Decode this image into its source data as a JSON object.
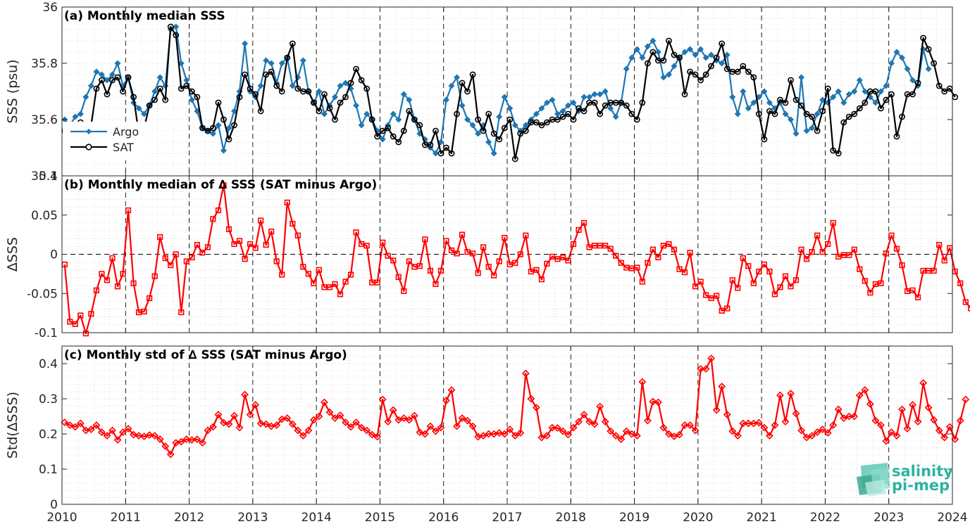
{
  "chart_data": [
    {
      "type": "line",
      "panel": "a",
      "title": "(a) Monthly median SSS",
      "ylabel": "SSS (psu)",
      "ylim": [
        35.4,
        36.0
      ],
      "yticks": [
        35.4,
        35.6,
        35.8,
        36
      ],
      "ytick_labels": [
        "35.4",
        "35.6",
        "35.8",
        "36"
      ],
      "x_start": "2010-01",
      "x_step": "1 month",
      "legend_placement": "bottom-left",
      "series": [
        {
          "name": "Argo",
          "color": "#1f77b4",
          "marker": "diamond-filled",
          "values": [
            35.6,
            35.58,
            35.61,
            35.62,
            35.68,
            35.72,
            35.77,
            35.76,
            35.74,
            35.76,
            35.8,
            35.72,
            35.75,
            35.66,
            35.64,
            35.62,
            35.65,
            35.7,
            35.75,
            35.72,
            35.92,
            35.93,
            35.8,
            35.74,
            35.67,
            35.63,
            35.57,
            35.56,
            35.55,
            35.58,
            35.49,
            35.57,
            35.63,
            35.7,
            35.87,
            35.7,
            35.68,
            35.72,
            35.81,
            35.8,
            35.73,
            35.8,
            35.82,
            35.72,
            35.75,
            35.81,
            35.7,
            35.66,
            35.7,
            35.62,
            35.65,
            35.68,
            35.72,
            35.73,
            35.71,
            35.65,
            35.58,
            35.62,
            35.6,
            35.56,
            35.53,
            35.58,
            35.62,
            35.6,
            35.69,
            35.67,
            35.6,
            35.55,
            35.53,
            35.5,
            35.48,
            35.52,
            35.67,
            35.72,
            35.75,
            35.65,
            35.6,
            35.58,
            35.55,
            35.58,
            35.52,
            35.48,
            35.61,
            35.68,
            35.64,
            35.58,
            35.56,
            35.58,
            35.6,
            35.62,
            35.64,
            35.66,
            35.67,
            35.62,
            35.63,
            35.65,
            35.66,
            35.63,
            35.68,
            35.68,
            35.69,
            35.69,
            35.7,
            35.64,
            35.61,
            35.66,
            35.78,
            35.82,
            35.85,
            35.82,
            35.86,
            35.88,
            35.84,
            35.75,
            35.76,
            35.79,
            35.82,
            35.84,
            35.85,
            35.83,
            35.85,
            35.82,
            35.83,
            35.81,
            35.8,
            35.83,
            35.68,
            35.62,
            35.7,
            35.64,
            35.66,
            35.68,
            35.7,
            35.66,
            35.64,
            35.66,
            35.62,
            35.6,
            35.55,
            35.75,
            35.56,
            35.57,
            35.62,
            35.67,
            35.66,
            35.68,
            35.7,
            35.66,
            35.69,
            35.7,
            35.74,
            35.7,
            35.68,
            35.66,
            35.7,
            35.72,
            35.8,
            35.84,
            35.82,
            35.78,
            35.74,
            35.72,
            35.85,
            35.78
          ]
        },
        {
          "name": "SAT",
          "color": "#000000",
          "marker": "circle-open",
          "values": [
            35.56,
            35.55,
            35.5,
            35.59,
            35.58,
            35.58,
            35.71,
            35.74,
            35.69,
            35.74,
            35.75,
            35.7,
            35.75,
            35.68,
            35.55,
            35.57,
            35.65,
            35.67,
            35.71,
            35.67,
            35.93,
            35.9,
            35.71,
            35.72,
            35.7,
            35.68,
            35.57,
            35.56,
            35.57,
            35.66,
            35.6,
            35.53,
            35.58,
            35.68,
            35.76,
            35.71,
            35.69,
            35.63,
            35.76,
            35.77,
            35.72,
            35.7,
            35.82,
            35.87,
            35.71,
            35.7,
            35.7,
            35.66,
            35.63,
            35.69,
            35.64,
            35.6,
            35.66,
            35.68,
            35.73,
            35.78,
            35.74,
            35.71,
            35.6,
            35.54,
            35.56,
            35.57,
            35.54,
            35.52,
            35.56,
            35.63,
            35.6,
            35.58,
            35.51,
            35.51,
            35.56,
            35.48,
            35.5,
            35.48,
            35.62,
            35.73,
            35.7,
            35.76,
            35.6,
            35.56,
            35.62,
            35.55,
            35.53,
            35.57,
            35.6,
            35.46,
            35.55,
            35.56,
            35.59,
            35.59,
            35.58,
            35.59,
            35.6,
            35.6,
            35.61,
            35.62,
            35.6,
            35.64,
            35.63,
            35.66,
            35.66,
            35.62,
            35.65,
            35.66,
            35.66,
            35.66,
            35.65,
            35.62,
            35.6,
            35.66,
            35.8,
            35.84,
            35.81,
            35.81,
            35.88,
            35.83,
            35.82,
            35.69,
            35.77,
            35.76,
            35.74,
            35.76,
            35.79,
            35.82,
            35.87,
            35.78,
            35.77,
            35.77,
            35.79,
            35.77,
            35.75,
            35.62,
            35.53,
            35.63,
            35.62,
            35.67,
            35.66,
            35.74,
            35.67,
            35.65,
            35.62,
            35.61,
            35.56,
            35.63,
            35.71,
            35.49,
            35.48,
            35.59,
            35.61,
            35.62,
            35.64,
            35.66,
            35.7,
            35.7,
            35.64,
            35.67,
            35.69,
            35.54,
            35.61,
            35.69,
            35.69,
            35.73,
            35.89,
            35.85,
            35.8,
            35.72,
            35.7,
            35.71,
            35.68
          ]
        }
      ]
    },
    {
      "type": "line",
      "panel": "b",
      "title": "(b) Monthly median of ∆ SSS (SAT minus Argo)",
      "ylabel": "∆SSS",
      "ylim": [
        -0.1,
        0.1
      ],
      "yticks": [
        -0.1,
        -0.05,
        0,
        0.05,
        0.1
      ],
      "ytick_labels": [
        "-0.1",
        "-0.05",
        "0",
        "0.05",
        "0.1"
      ],
      "zero_line": true,
      "x_start": "2010-01",
      "x_step": "1 month",
      "series": [
        {
          "name": "",
          "color": "#ff0000",
          "marker": "square-open",
          "values": [
            -0.013,
            -0.086,
            -0.089,
            -0.078,
            -0.101,
            -0.076,
            -0.046,
            -0.025,
            -0.033,
            -0.005,
            -0.041,
            -0.025,
            0.056,
            -0.037,
            -0.074,
            -0.073,
            -0.056,
            -0.028,
            0.022,
            -0.005,
            -0.014,
            0.0,
            -0.074,
            -0.009,
            -0.004,
            0.012,
            0.002,
            0.009,
            0.045,
            0.056,
            0.088,
            0.032,
            0.013,
            0.017,
            -0.006,
            0.013,
            0.008,
            0.043,
            0.012,
            0.029,
            -0.009,
            -0.026,
            0.066,
            0.039,
            0.024,
            -0.016,
            -0.025,
            -0.037,
            -0.02,
            -0.042,
            -0.042,
            -0.038,
            -0.051,
            -0.035,
            -0.026,
            0.028,
            0.013,
            0.011,
            -0.036,
            -0.036,
            0.015,
            -0.002,
            -0.008,
            -0.029,
            -0.047,
            -0.009,
            -0.016,
            -0.015,
            0.019,
            -0.021,
            -0.038,
            -0.021,
            0.017,
            0.005,
            0.001,
            0.025,
            0.003,
            0.001,
            -0.024,
            0.009,
            -0.016,
            -0.027,
            -0.009,
            0.021,
            -0.013,
            -0.011,
            0.0,
            0.024,
            -0.022,
            -0.02,
            -0.032,
            -0.012,
            -0.003,
            -0.006,
            -0.004,
            -0.008,
            0.013,
            0.031,
            0.04,
            0.009,
            0.011,
            0.011,
            0.011,
            0.007,
            -0.002,
            -0.011,
            -0.017,
            -0.018,
            -0.017,
            -0.035,
            -0.011,
            0.006,
            -0.004,
            0.011,
            0.013,
            0.006,
            -0.019,
            -0.023,
            0.002,
            -0.041,
            -0.035,
            -0.052,
            -0.056,
            -0.053,
            -0.072,
            -0.069,
            -0.033,
            -0.043,
            -0.005,
            -0.015,
            -0.037,
            -0.022,
            -0.013,
            -0.022,
            -0.051,
            -0.042,
            -0.028,
            -0.041,
            -0.033,
            0.006,
            -0.006,
            0.003,
            0.024,
            0.003,
            0.013,
            0.04,
            -0.003,
            -0.001,
            -0.001,
            0.006,
            -0.019,
            -0.034,
            -0.049,
            -0.038,
            -0.037,
            0.001,
            0.024,
            0.007,
            -0.014,
            -0.047,
            -0.046,
            -0.055,
            -0.021,
            -0.021,
            -0.021,
            0.012,
            -0.008,
            0.008,
            -0.022,
            -0.037,
            -0.061,
            -0.069
          ]
        }
      ]
    },
    {
      "type": "line",
      "panel": "c",
      "title": "(c) Monthly std of ∆ SSS (SAT minus Argo)",
      "ylabel": "Std(∆SSS)",
      "ylim": [
        0,
        0.45
      ],
      "yticks": [
        0,
        0.1,
        0.2,
        0.3,
        0.4
      ],
      "ytick_labels": [
        "0",
        "0.1",
        "0.2",
        "0.3",
        "0.4"
      ],
      "x_start": "2010-01",
      "x_step": "1 month",
      "series": [
        {
          "name": "",
          "color": "#ff0000",
          "marker": "diamond-open",
          "values": [
            0.233,
            0.225,
            0.22,
            0.23,
            0.21,
            0.213,
            0.225,
            0.205,
            0.195,
            0.21,
            0.183,
            0.205,
            0.215,
            0.198,
            0.195,
            0.193,
            0.197,
            0.195,
            0.185,
            0.165,
            0.142,
            0.175,
            0.178,
            0.185,
            0.183,
            0.185,
            0.175,
            0.21,
            0.22,
            0.255,
            0.232,
            0.228,
            0.252,
            0.218,
            0.312,
            0.255,
            0.283,
            0.23,
            0.228,
            0.222,
            0.225,
            0.242,
            0.245,
            0.228,
            0.21,
            0.195,
            0.21,
            0.24,
            0.25,
            0.29,
            0.262,
            0.245,
            0.253,
            0.233,
            0.22,
            0.233,
            0.218,
            0.21,
            0.198,
            0.192,
            0.298,
            0.235,
            0.268,
            0.24,
            0.245,
            0.24,
            0.252,
            0.205,
            0.2,
            0.222,
            0.208,
            0.218,
            0.295,
            0.325,
            0.222,
            0.245,
            0.238,
            0.222,
            0.192,
            0.195,
            0.2,
            0.2,
            0.203,
            0.2,
            0.213,
            0.195,
            0.203,
            0.372,
            0.3,
            0.275,
            0.19,
            0.195,
            0.218,
            0.217,
            0.208,
            0.198,
            0.218,
            0.235,
            0.255,
            0.235,
            0.228,
            0.278,
            0.235,
            0.208,
            0.195,
            0.185,
            0.208,
            0.2,
            0.195,
            0.348,
            0.238,
            0.292,
            0.29,
            0.218,
            0.2,
            0.193,
            0.198,
            0.225,
            0.225,
            0.21,
            0.385,
            0.385,
            0.415,
            0.268,
            0.335,
            0.255,
            0.208,
            0.195,
            0.23,
            0.23,
            0.23,
            0.232,
            0.218,
            0.195,
            0.225,
            0.31,
            0.235,
            0.315,
            0.258,
            0.21,
            0.19,
            0.195,
            0.205,
            0.213,
            0.203,
            0.225,
            0.27,
            0.245,
            0.25,
            0.25,
            0.31,
            0.325,
            0.285,
            0.238,
            0.225,
            0.18,
            0.205,
            0.195,
            0.27,
            0.215,
            0.283,
            0.235,
            0.345,
            0.275,
            0.24,
            0.21,
            0.19,
            0.22,
            0.185,
            0.238,
            0.298
          ]
        }
      ]
    }
  ],
  "x_axis": {
    "range": [
      2010,
      2024
    ],
    "tick_labels": [
      "2010",
      "2011",
      "2012",
      "2013",
      "2014",
      "2015",
      "2016",
      "2017",
      "2018",
      "2019",
      "2020",
      "2021",
      "2022",
      "2023",
      "2024"
    ]
  },
  "logo": {
    "line1": "salinity",
    "line2": "pi-mep"
  }
}
